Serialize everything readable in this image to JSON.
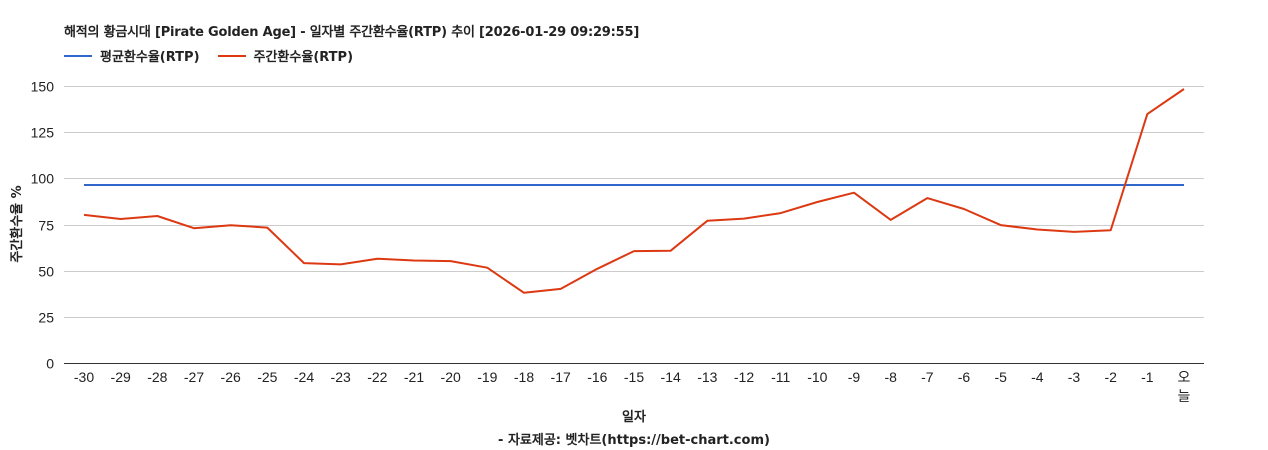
{
  "title": "해적의 황금시대 [Pirate Golden Age] - 일자별 주간환수율(RTP) 추이 [2026-01-29 09:29:55]",
  "legend": [
    {
      "name": "평균환수율(RTP)",
      "color": "#3366cc"
    },
    {
      "name": "주간환수율(RTP)",
      "color": "#dc3912"
    }
  ],
  "y_axis_title": "주간환수율 %",
  "x_axis_title": "일자",
  "source": "- 자료제공: 벳차트(https://bet-chart.com)",
  "chart_data": {
    "type": "line",
    "title": "해적의 황금시대 [Pirate Golden Age] - 일자별 주간환수율(RTP) 추이 [2026-01-29 09:29:55]",
    "xlabel": "일자",
    "ylabel": "주간환수율 %",
    "ylim": [
      0,
      150
    ],
    "yticks": [
      0,
      25,
      50,
      75,
      100,
      125,
      150
    ],
    "grid": true,
    "legend_position": "top",
    "categories": [
      "-30",
      "-29",
      "-28",
      "-27",
      "-26",
      "-25",
      "-24",
      "-23",
      "-22",
      "-21",
      "-20",
      "-19",
      "-18",
      "-17",
      "-16",
      "-15",
      "-14",
      "-13",
      "-12",
      "-11",
      "-10",
      "-9",
      "-8",
      "-7",
      "-6",
      "-5",
      "-4",
      "-3",
      "-2",
      "-1",
      "오늘"
    ],
    "series": [
      {
        "name": "평균환수율(RTP)",
        "color": "#3366cc",
        "values": [
          96.4,
          96.4,
          96.4,
          96.4,
          96.4,
          96.4,
          96.4,
          96.4,
          96.4,
          96.4,
          96.4,
          96.4,
          96.4,
          96.4,
          96.4,
          96.4,
          96.4,
          96.4,
          96.4,
          96.4,
          96.4,
          96.4,
          96.4,
          96.4,
          96.4,
          96.4,
          96.4,
          96.4,
          96.4,
          96.4,
          96.4
        ]
      },
      {
        "name": "주간환수율(RTP)",
        "color": "#dc3912",
        "values": [
          80.2,
          78.0,
          79.6,
          73.0,
          74.6,
          73.3,
          54.1,
          53.4,
          56.5,
          55.5,
          55.2,
          51.6,
          38.0,
          40.1,
          51.0,
          60.6,
          60.8,
          77.0,
          78.2,
          81.2,
          87.2,
          92.2,
          77.5,
          89.3,
          83.4,
          74.7,
          72.3,
          71.0,
          71.9,
          134.8,
          148.4
        ]
      }
    ]
  }
}
